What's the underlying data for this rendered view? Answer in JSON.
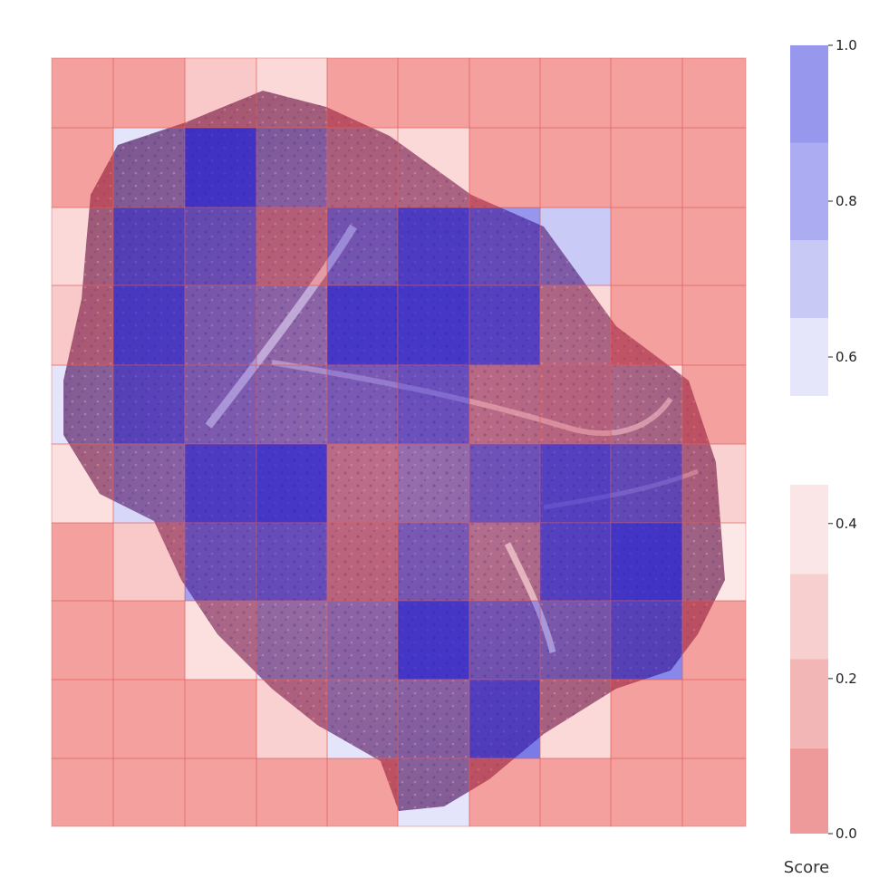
{
  "chart_data": {
    "type": "heatmap",
    "title": "",
    "xlabel": "",
    "ylabel": "",
    "background": "tissue-section-image",
    "grid": {
      "rows": 10,
      "cols": 10,
      "scores": [
        [
          0.05,
          0.05,
          0.25,
          0.35,
          0.05,
          0.05,
          0.05,
          0.05,
          0.05,
          0.05
        ],
        [
          0.05,
          0.5,
          1.0,
          0.55,
          0.3,
          0.35,
          0.05,
          0.05,
          0.05,
          0.05
        ],
        [
          0.35,
          0.85,
          0.75,
          0.2,
          0.7,
          0.95,
          0.8,
          0.6,
          0.05,
          0.05
        ],
        [
          0.25,
          0.95,
          0.65,
          0.55,
          1.0,
          1.0,
          0.9,
          0.35,
          0.05,
          0.05
        ],
        [
          0.5,
          0.85,
          0.65,
          0.6,
          0.7,
          0.8,
          0.3,
          0.25,
          0.4,
          0.05
        ],
        [
          0.4,
          0.55,
          0.95,
          1.0,
          0.3,
          0.55,
          0.75,
          0.9,
          0.8,
          0.3
        ],
        [
          0.05,
          0.25,
          0.75,
          0.8,
          0.2,
          0.7,
          0.4,
          0.9,
          1.0,
          0.45
        ],
        [
          0.05,
          0.05,
          0.4,
          0.5,
          0.55,
          1.0,
          0.7,
          0.65,
          0.85,
          0.05
        ],
        [
          0.05,
          0.05,
          0.05,
          0.3,
          0.5,
          0.55,
          0.9,
          0.35,
          0.05,
          0.05
        ],
        [
          0.05,
          0.05,
          0.05,
          0.05,
          0.05,
          0.5,
          0.05,
          0.05,
          0.05,
          0.05
        ]
      ]
    },
    "colorbars": [
      {
        "name": "high",
        "range": [
          0.55,
          1.0
        ],
        "ticks": [
          0.6,
          0.8,
          1.0
        ],
        "tick_labels": [
          "0.6",
          "0.8",
          "1.0"
        ],
        "bins": [
          {
            "from": 0.55,
            "to": 0.65,
            "color": "#e6e6fb"
          },
          {
            "from": 0.65,
            "to": 0.75,
            "color": "#c9c9f6"
          },
          {
            "from": 0.75,
            "to": 0.875,
            "color": "#acacf2"
          },
          {
            "from": 0.875,
            "to": 1.0,
            "color": "#9797ed"
          }
        ]
      },
      {
        "name": "low",
        "range": [
          0.0,
          0.45
        ],
        "ticks": [
          0.0,
          0.2,
          0.4
        ],
        "tick_labels": [
          "0.0",
          "0.2",
          "0.4"
        ],
        "bins": [
          {
            "from": 0.0,
            "to": 0.11,
            "color": "#ef9a9a"
          },
          {
            "from": 0.11,
            "to": 0.225,
            "color": "#f3b6b6"
          },
          {
            "from": 0.225,
            "to": 0.335,
            "color": "#f7cfcf"
          },
          {
            "from": 0.335,
            "to": 0.45,
            "color": "#fae6e6"
          }
        ]
      }
    ],
    "colorbar_label": "Score",
    "colors": {
      "low": "#e53935",
      "high": "#2222dd",
      "tissue_pink": "#c98fa8",
      "tissue_purple": "#6c4f86",
      "gridline": "#e06060"
    }
  }
}
